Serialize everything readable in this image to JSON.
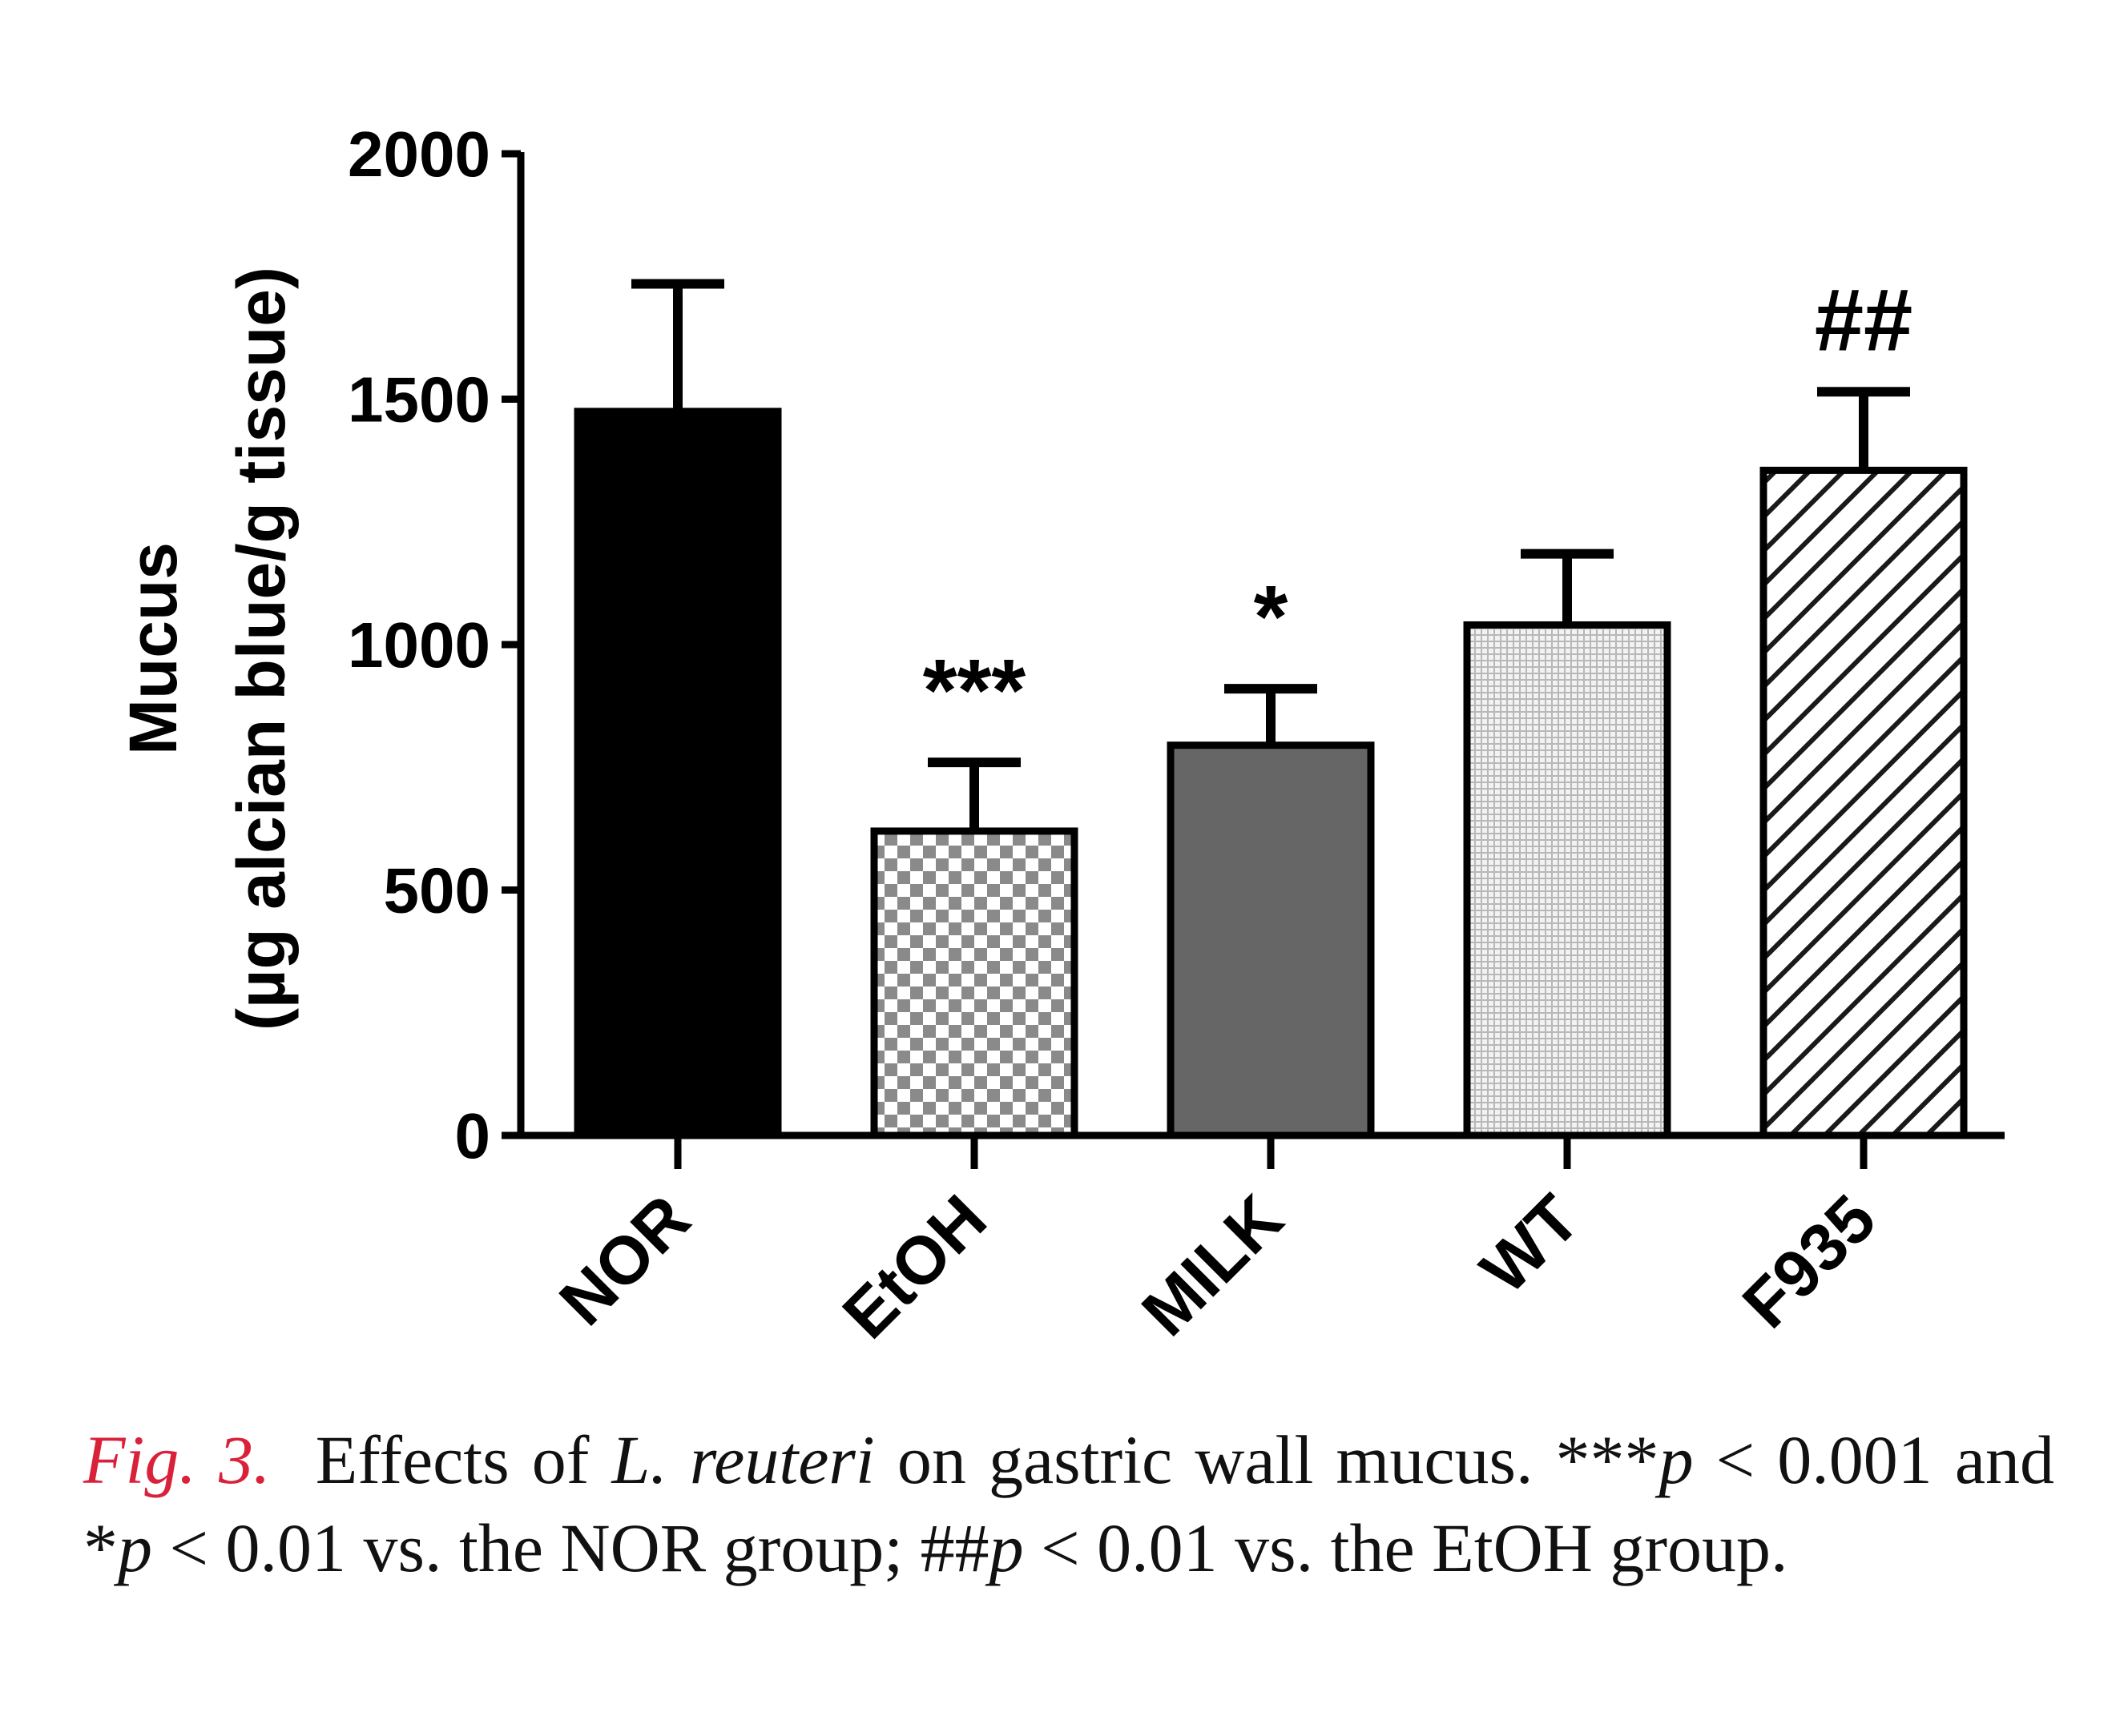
{
  "chart_data": {
    "type": "bar",
    "categories": [
      "NOR",
      "EtOH",
      "MILK",
      "WT",
      "F935"
    ],
    "values": [
      1475,
      620,
      795,
      1040,
      1355
    ],
    "error": [
      260,
      140,
      115,
      145,
      160
    ],
    "annotations": [
      "",
      "***",
      "*",
      "",
      "##"
    ],
    "patterns": [
      "solid-black",
      "checker",
      "solid-gray",
      "fine-grid",
      "diagonal-hatch"
    ],
    "ylabel_line1": "Mucus",
    "ylabel_line2": "(µg alcian blue/g tissue)",
    "ylim": [
      0,
      2000
    ],
    "yticks": [
      0,
      500,
      1000,
      1500,
      2000
    ],
    "grid": false,
    "legend": "none"
  },
  "caption": {
    "fig_label": "Fig. 3.",
    "part1": "Effects of ",
    "species": "L. reuteri",
    "part2": " on gastric wall mucus. ***",
    "p1": "p",
    "part3": " < 0.001 and *",
    "p2": "p",
    "part4": " < 0.01 vs. the NOR group; ##",
    "p3": "p",
    "part5": " < 0.01 vs. the EtOH group."
  }
}
